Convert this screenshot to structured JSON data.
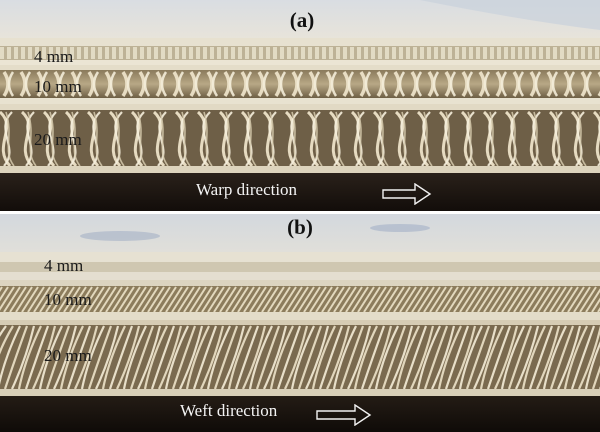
{
  "panels": [
    {
      "id": "a",
      "label": "(a)",
      "layers": [
        "4 mm",
        "10 mm",
        "20 mm"
      ],
      "direction": "Warp direction",
      "arrow_icon": "right-arrow-icon",
      "pile_style": "looped"
    },
    {
      "id": "b",
      "label": "(b)",
      "layers": [
        "4 mm",
        "10 mm",
        "20 mm"
      ],
      "direction": "Weft direction",
      "arrow_icon": "right-arrow-icon",
      "pile_style": "slanted"
    }
  ],
  "colors": {
    "face_sheet": "#e2dccb",
    "pile": "#ece2c8",
    "pile_shadow": "#7a6a4e",
    "background_dark": "#1a1410",
    "table_top": "#d6dbe0"
  }
}
